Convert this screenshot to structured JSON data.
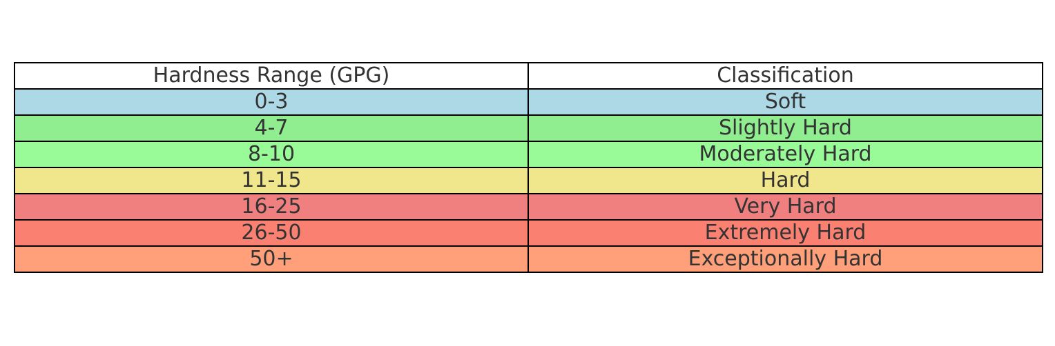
{
  "chart_data": {
    "type": "table",
    "columns": [
      "Hardness Range (GPG)",
      "Classification"
    ],
    "rows": [
      {
        "range": "0-3",
        "classification": "Soft",
        "color": "#add8e6"
      },
      {
        "range": "4-7",
        "classification": "Slightly Hard",
        "color": "#90ee90"
      },
      {
        "range": "8-10",
        "classification": "Moderately Hard",
        "color": "#98fb98"
      },
      {
        "range": "11-15",
        "classification": "Hard",
        "color": "#f0e68c"
      },
      {
        "range": "16-25",
        "classification": "Very Hard",
        "color": "#f08080"
      },
      {
        "range": "26-50",
        "classification": "Extremely Hard",
        "color": "#fa8072"
      },
      {
        "range": "50+",
        "classification": "Exceptionally Hard",
        "color": "#ffa07a"
      }
    ]
  }
}
